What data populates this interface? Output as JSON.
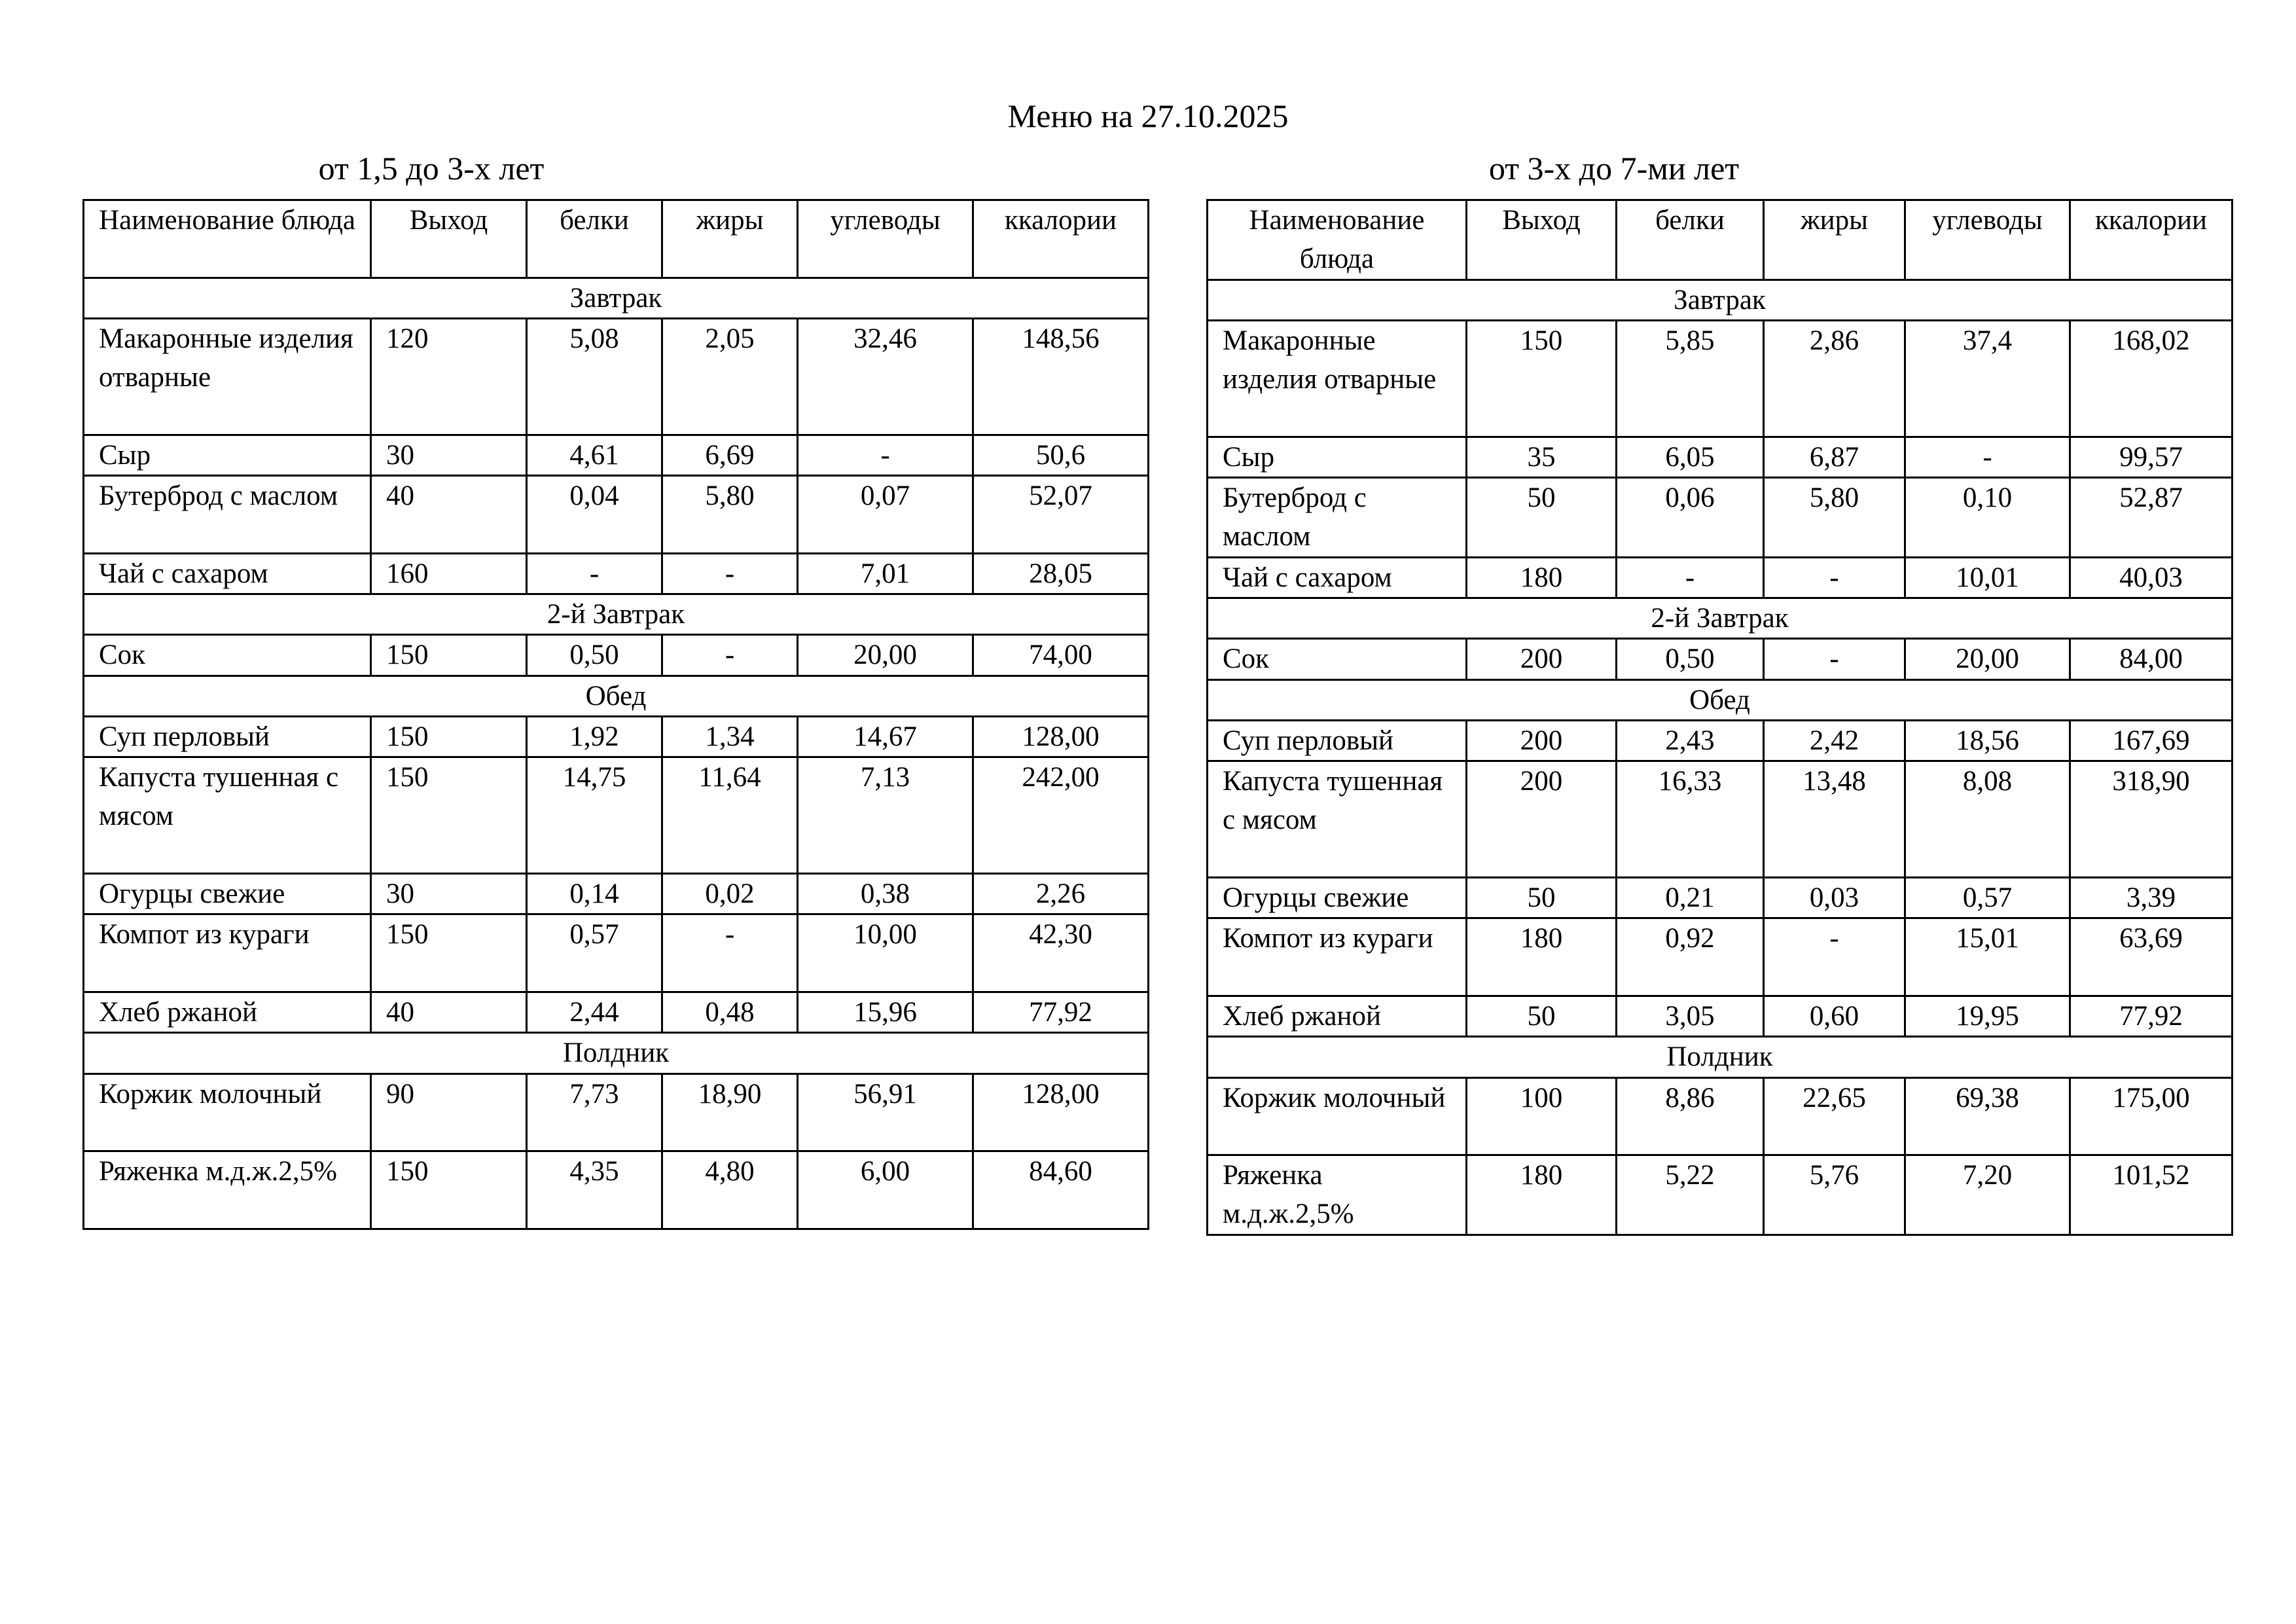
{
  "title": "Меню на 27.10.2025",
  "tables": [
    {
      "subtitle": "от 1,5 до 3-х лет",
      "headers": [
        "Наименование блюда",
        "Выход",
        "белки",
        "жиры",
        "углеводы",
        "ккалории"
      ],
      "rows": [
        {
          "type": "section",
          "label": "Завтрак"
        },
        {
          "type": "item",
          "cells": [
            "Макаронные изделия отварные",
            "120",
            "5,08",
            "2,05",
            "32,46",
            "148,56"
          ]
        },
        {
          "type": "item",
          "cells": [
            "Сыр",
            "30",
            "4,61",
            "6,69",
            "-",
            "50,6"
          ]
        },
        {
          "type": "item",
          "cells": [
            "Бутерброд с маслом",
            "40",
            "0,04",
            "5,80",
            "0,07",
            "52,07"
          ]
        },
        {
          "type": "item",
          "cells": [
            "Чай с сахаром",
            "160",
            "-",
            "-",
            "7,01",
            "28,05"
          ]
        },
        {
          "type": "section",
          "label": "2-й Завтрак"
        },
        {
          "type": "item",
          "cells": [
            "Сок",
            "150",
            "0,50",
            "-",
            "20,00",
            "74,00"
          ]
        },
        {
          "type": "section",
          "label": "Обед"
        },
        {
          "type": "item",
          "cells": [
            "Суп перловый",
            "150",
            "1,92",
            "1,34",
            "14,67",
            "128,00"
          ]
        },
        {
          "type": "item",
          "cells": [
            "Капуста тушенная с мясом",
            "150",
            "14,75",
            "11,64",
            "7,13",
            "242,00"
          ]
        },
        {
          "type": "item",
          "cells": [
            "Огурцы свежие",
            "30",
            "0,14",
            "0,02",
            "0,38",
            "2,26"
          ]
        },
        {
          "type": "item",
          "cells": [
            "Компот из кураги",
            "150",
            "0,57",
            "-",
            "10,00",
            "42,30"
          ]
        },
        {
          "type": "item",
          "cells": [
            "Хлеб ржаной",
            "40",
            "2,44",
            "0,48",
            "15,96",
            "77,92"
          ]
        },
        {
          "type": "section",
          "label": "Полдник"
        },
        {
          "type": "item",
          "cells": [
            "Коржик молочный",
            "90",
            "7,73",
            "18,90",
            "56,91",
            "128,00"
          ]
        },
        {
          "type": "item",
          "cells": [
            "Ряженка м.д.ж.2,5%",
            "150",
            "4,35",
            "4,80",
            "6,00",
            "84,60"
          ]
        }
      ]
    },
    {
      "subtitle": "от 3-х до 7-ми лет",
      "headers": [
        "Наименование блюда",
        "Выход",
        "белки",
        "жиры",
        "углеводы",
        "ккалории"
      ],
      "rows": [
        {
          "type": "section",
          "label": "Завтрак"
        },
        {
          "type": "item",
          "cells": [
            "Макаронные изделия отварные",
            "150",
            "5,85",
            "2,86",
            "37,4",
            "168,02"
          ]
        },
        {
          "type": "item",
          "cells": [
            "Сыр",
            "35",
            "6,05",
            "6,87",
            "-",
            "99,57"
          ]
        },
        {
          "type": "item",
          "cells": [
            "Бутерброд с маслом",
            "50",
            "0,06",
            "5,80",
            "0,10",
            "52,87"
          ]
        },
        {
          "type": "item",
          "cells": [
            "Чай с сахаром",
            "180",
            "-",
            "-",
            "10,01",
            "40,03"
          ]
        },
        {
          "type": "section",
          "label": "2-й Завтрак"
        },
        {
          "type": "item",
          "cells": [
            "Сок",
            "200",
            "0,50",
            "-",
            "20,00",
            "84,00"
          ]
        },
        {
          "type": "section",
          "label": "Обед"
        },
        {
          "type": "item",
          "cells": [
            "Суп перловый",
            "200",
            "2,43",
            "2,42",
            "18,56",
            "167,69"
          ]
        },
        {
          "type": "item",
          "cells": [
            "Капуста тушенная с мясом",
            "200",
            "16,33",
            "13,48",
            "8,08",
            "318,90"
          ]
        },
        {
          "type": "item",
          "cells": [
            "Огурцы свежие",
            "50",
            "0,21",
            "0,03",
            "0,57",
            "3,39"
          ]
        },
        {
          "type": "item",
          "cells": [
            "Компот из кураги",
            "180",
            "0,92",
            "-",
            "15,01",
            "63,69"
          ]
        },
        {
          "type": "item",
          "cells": [
            "Хлеб ржаной",
            "50",
            "3,05",
            "0,60",
            "19,95",
            "77,92"
          ]
        },
        {
          "type": "section",
          "label": "Полдник"
        },
        {
          "type": "item",
          "cells": [
            "Коржик молочный",
            "100",
            "8,86",
            "22,65",
            "69,38",
            "175,00"
          ]
        },
        {
          "type": "item",
          "cells": [
            "Ряженка м.д.ж.2,5%",
            "180",
            "5,22",
            "5,76",
            "7,20",
            "101,52"
          ]
        }
      ]
    }
  ]
}
